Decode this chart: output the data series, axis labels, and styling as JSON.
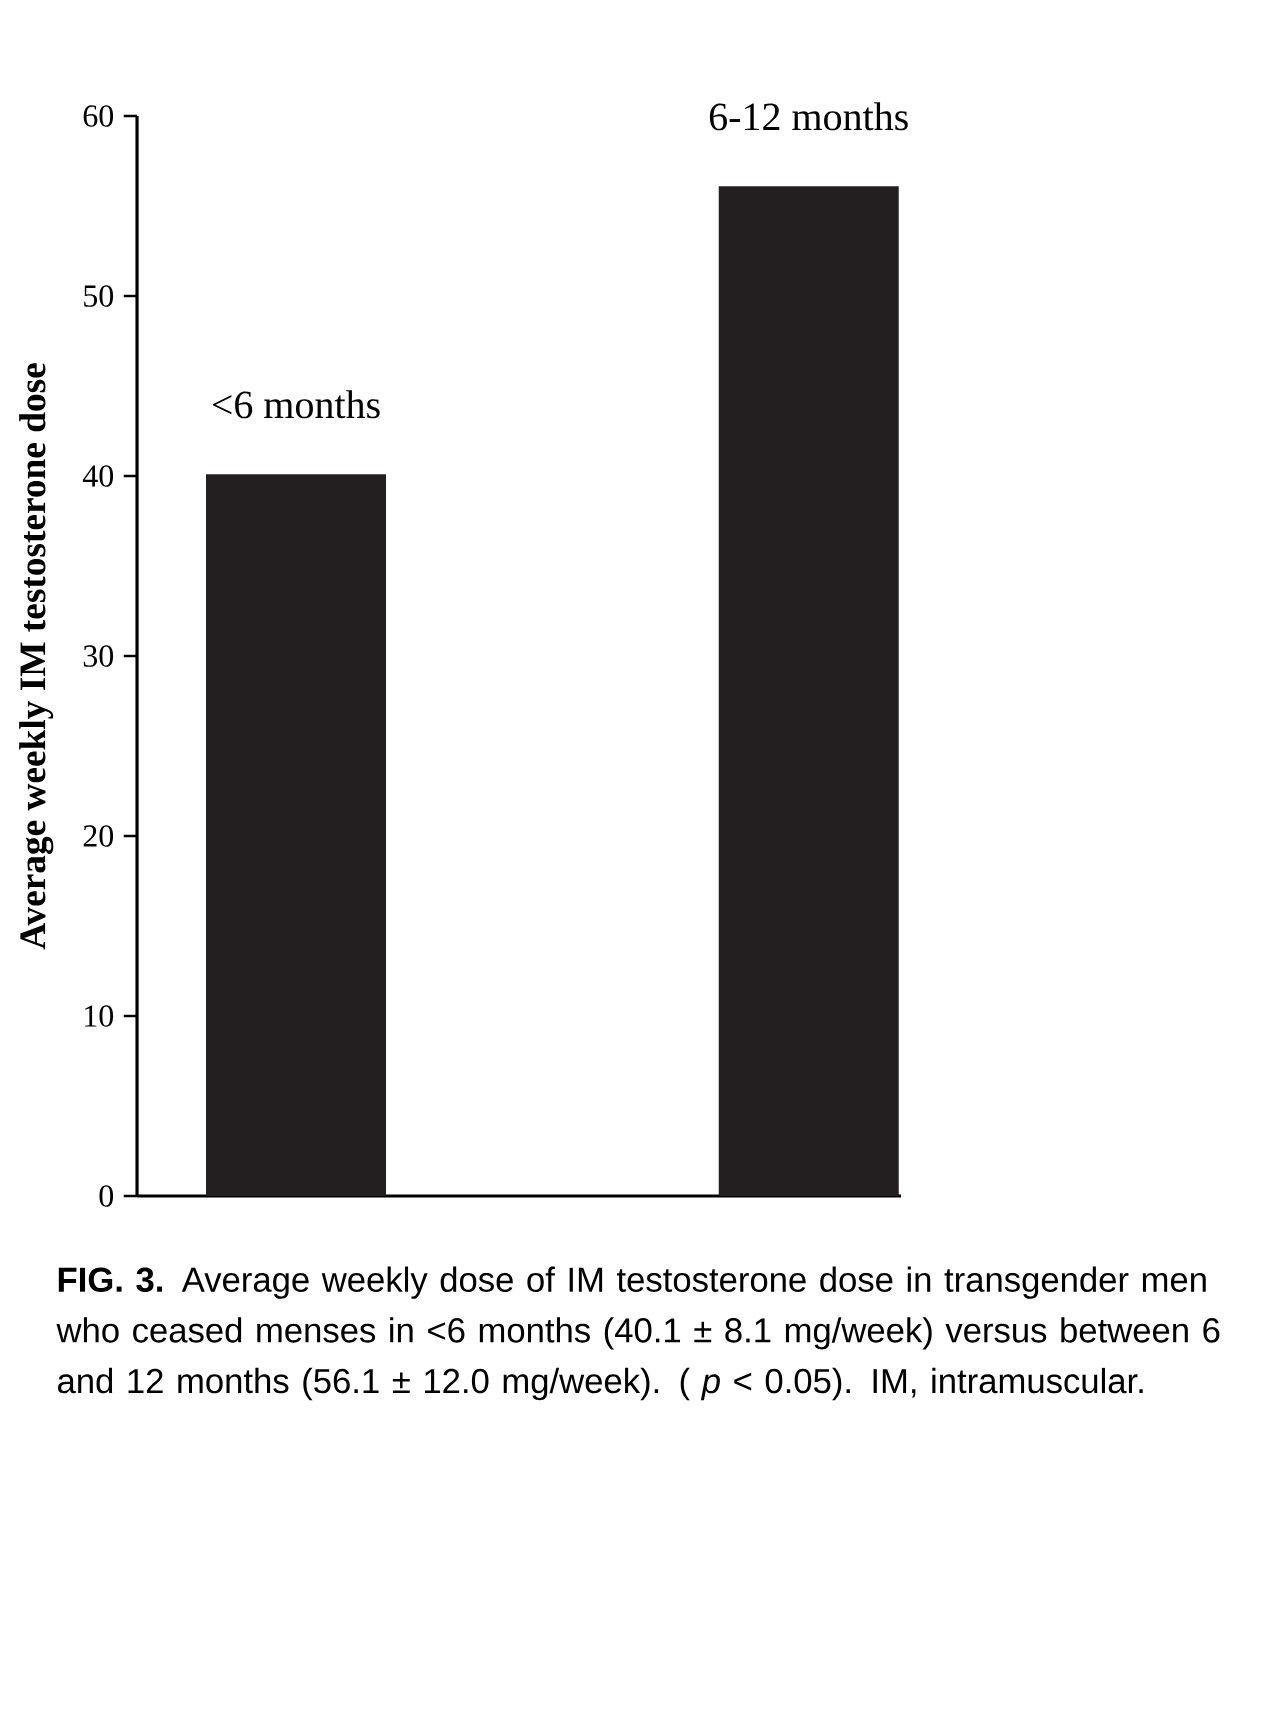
{
  "chart_data": {
    "type": "bar",
    "categories": [
      "<6 months",
      "6-12 months"
    ],
    "values": [
      40.1,
      56.1
    ],
    "color": "#231f20",
    "ylabel": "Average weekly IM testosterone dose",
    "ylim": [
      0,
      60
    ],
    "yticks": [
      0,
      10,
      20,
      30,
      40,
      50,
      60
    ],
    "tick_labels": "y",
    "annotations": [
      "**FIG. 3.**    Average weekly dose of IM testosterone dose in transgender men who ceased menses in <6 months (40.1 ± 8.1 mg/week) versus between 6 and 12 months (56.1 ± 12.0 mg/week). ( *p* < 0.05). IM, intramuscular."
    ]
  }
}
